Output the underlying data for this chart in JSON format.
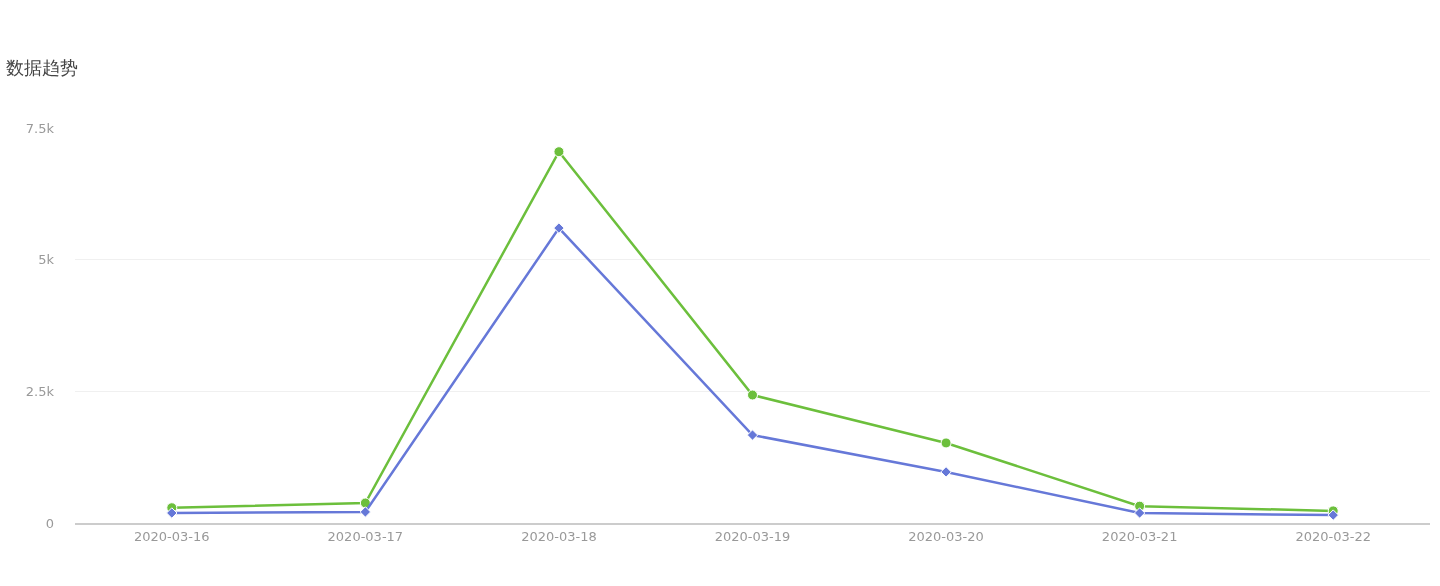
{
  "chart_data": {
    "type": "line",
    "title": "数据趋势",
    "categories": [
      "2020-03-16",
      "2020-03-17",
      "2020-03-18",
      "2020-03-19",
      "2020-03-20",
      "2020-03-21",
      "2020-03-22"
    ],
    "series": [
      {
        "color": "#6cbf3c",
        "marker": "circle",
        "values": [
          290,
          380,
          7050,
          2430,
          1520,
          320,
          230
        ]
      },
      {
        "color": "#6678d8",
        "marker": "diamond",
        "values": [
          190,
          210,
          5600,
          1670,
          970,
          190,
          150
        ]
      }
    ],
    "ylim": [
      0,
      7500
    ],
    "yticks": [
      0,
      {
        "value": 2500,
        "label": "2.5k"
      },
      {
        "value": 5000,
        "label": "5k"
      },
      {
        "value": 7500,
        "label": "7.5k"
      }
    ],
    "grid": "y",
    "line_style": "solid"
  }
}
